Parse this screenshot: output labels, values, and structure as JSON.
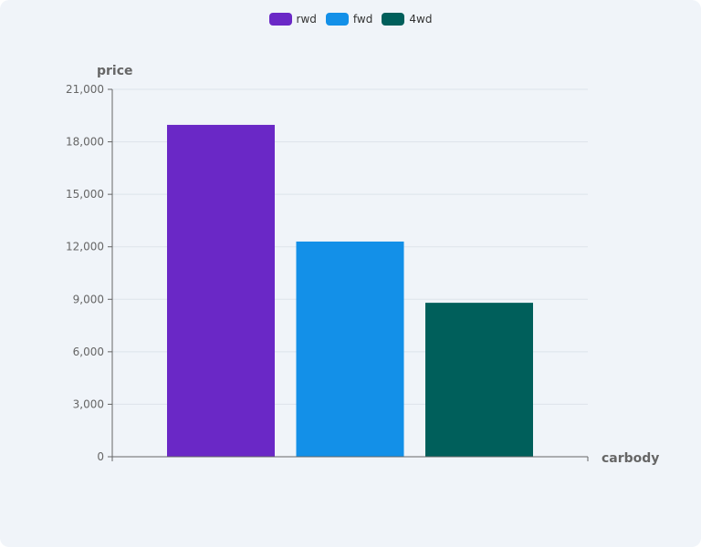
{
  "chart_data": {
    "type": "bar",
    "categories": [
      "rwd",
      "fwd",
      "4wd"
    ],
    "values": [
      18970,
      12300,
      8800
    ],
    "colors": [
      "#6a28c6",
      "#1390e8",
      "#005f5b"
    ],
    "xlabel": "carbody",
    "ylabel": "price",
    "ylim": [
      0,
      21000
    ],
    "yticks": [
      0,
      3000,
      6000,
      9000,
      12000,
      15000,
      18000,
      21000
    ],
    "ytick_labels": [
      "0",
      "3,000",
      "6,000",
      "9,000",
      "12,000",
      "15,000",
      "18,000",
      "21,000"
    ],
    "grid": true,
    "legend": "top-center"
  }
}
